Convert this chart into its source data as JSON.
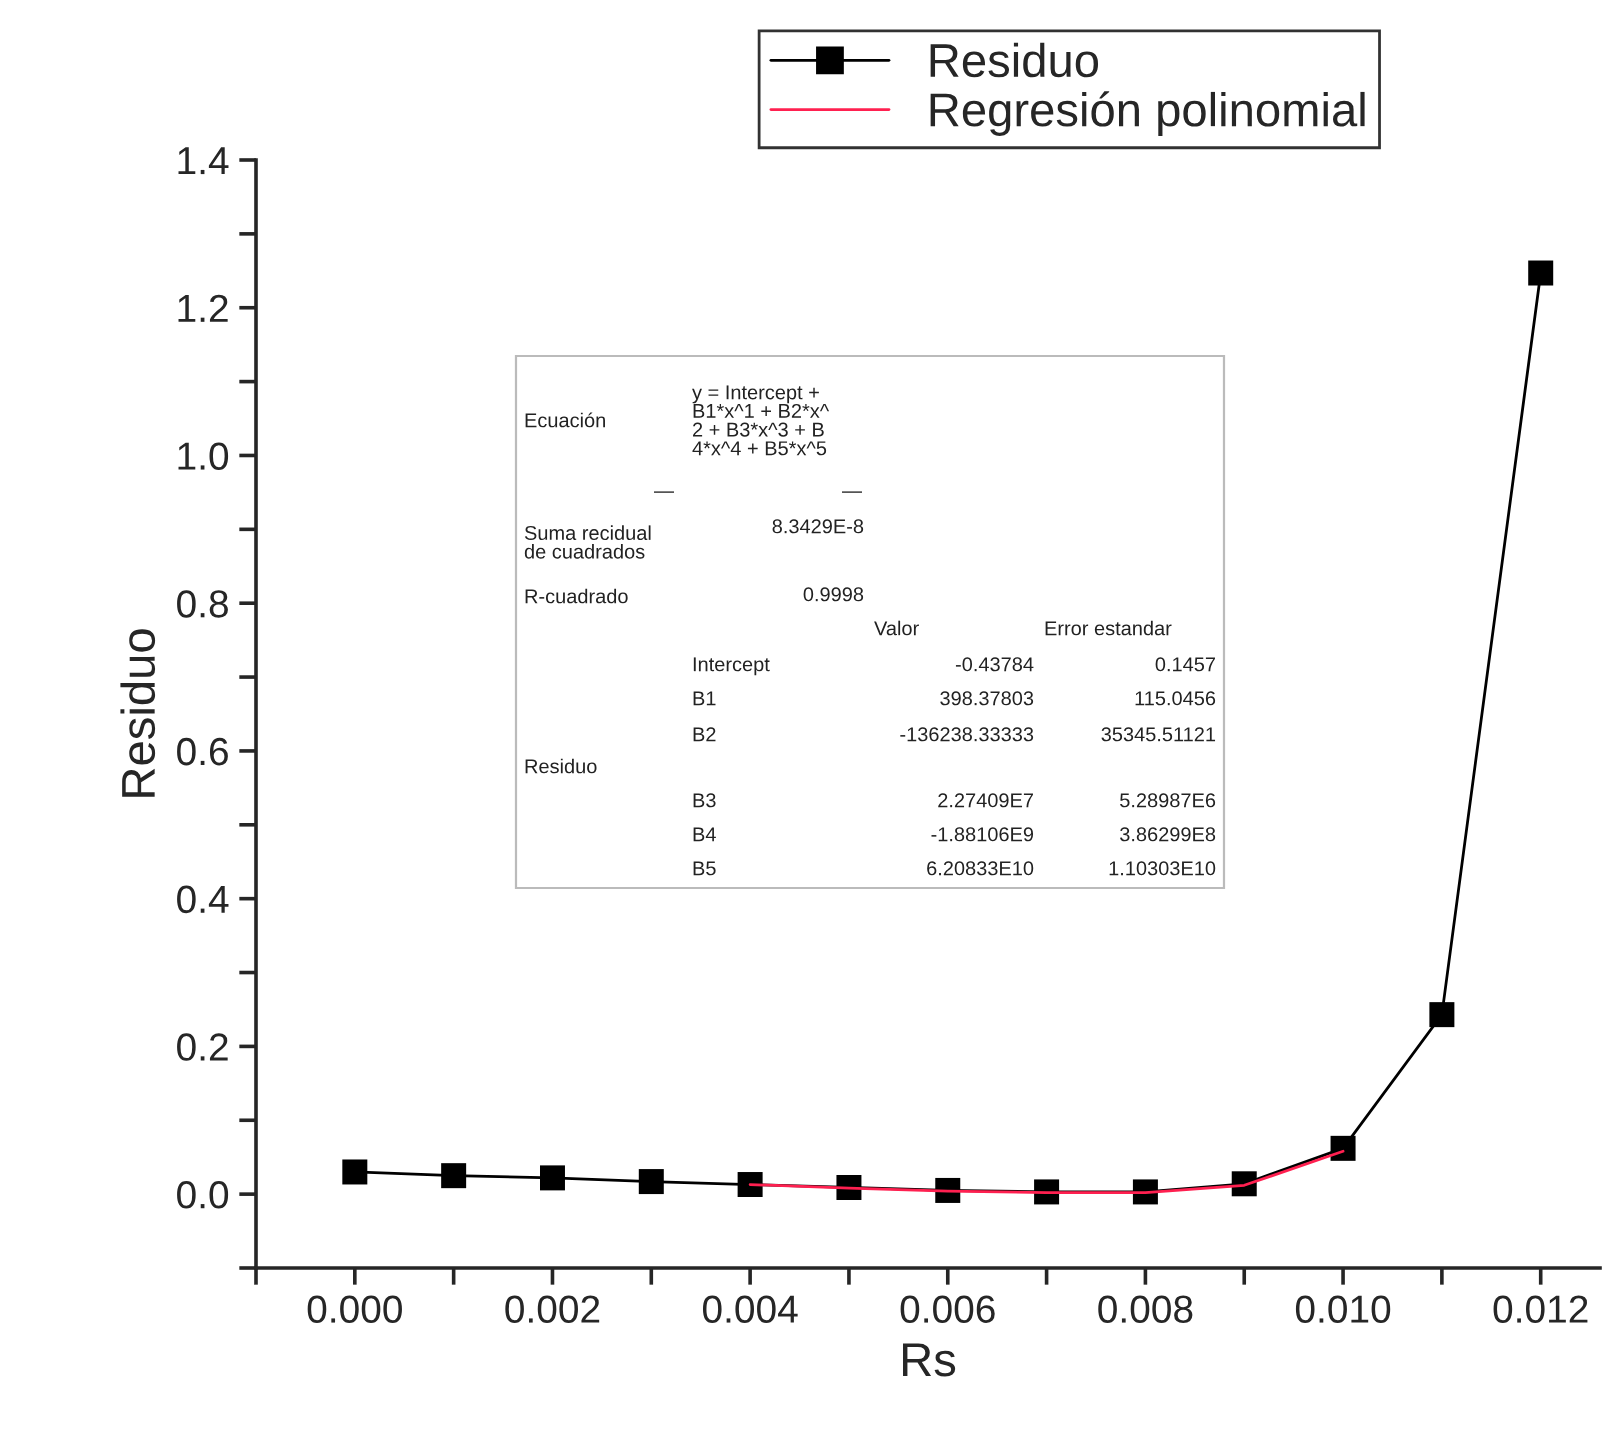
{
  "chart_data": {
    "type": "line",
    "xlabel": "Rs",
    "ylabel": "Residuo",
    "series": [
      {
        "name": "Residuo",
        "color": "#000000",
        "marker": "square",
        "x": [
          0.0,
          0.001,
          0.002,
          0.003,
          0.004,
          0.005,
          0.006,
          0.007,
          0.008,
          0.009,
          0.01,
          0.011,
          0.012
        ],
        "values": [
          0.03,
          0.025,
          0.022,
          0.017,
          0.013,
          0.009,
          0.005,
          0.003,
          0.003,
          0.014,
          0.062,
          0.243,
          1.247
        ]
      },
      {
        "name": "Regresión polinomial",
        "color": "#ff2050",
        "marker": "none",
        "x": [
          0.004,
          0.005,
          0.006,
          0.007,
          0.008,
          0.009,
          0.01
        ],
        "values": [
          0.013,
          0.008,
          0.004,
          0.002,
          0.002,
          0.012,
          0.058
        ]
      }
    ],
    "xlim": [
      -0.001,
      0.0126
    ],
    "ylim": [
      -0.1,
      1.4
    ],
    "xticks": [
      {
        "value": -0.001,
        "label": null
      },
      "0.000",
      {
        "value": 0.001,
        "label": null
      },
      {
        "value": 0.002,
        "label": "0.002"
      },
      {
        "value": 0.003,
        "label": null
      },
      {
        "value": 0.004,
        "label": "0.004"
      },
      {
        "value": 0.005,
        "label": null
      },
      {
        "value": 0.006,
        "label": "0.006"
      },
      {
        "value": 0.007,
        "label": null
      },
      {
        "value": 0.008,
        "label": "0.008"
      },
      {
        "value": 0.009,
        "label": null
      },
      {
        "value": 0.01,
        "label": "0.010"
      },
      {
        "value": 0.011,
        "label": null
      },
      {
        "value": 0.012,
        "label": "0.012"
      }
    ],
    "yticks": [
      {
        "value": -0.1,
        "label": null
      },
      {
        "value": 0.0,
        "label": "0.0"
      },
      {
        "value": 0.1,
        "label": null
      },
      {
        "value": 0.2,
        "label": "0.2"
      },
      {
        "value": 0.3,
        "label": null
      },
      {
        "value": 0.4,
        "label": "0.4"
      },
      {
        "value": 0.5,
        "label": null
      },
      {
        "value": 0.6,
        "label": "0.6"
      },
      {
        "value": 0.7,
        "label": null
      },
      {
        "value": 0.8,
        "label": "0.8"
      },
      {
        "value": 0.9,
        "label": null
      },
      {
        "value": 1.0,
        "label": "1.0"
      },
      {
        "value": 1.1,
        "label": null
      },
      {
        "value": 1.2,
        "label": "1.2"
      },
      {
        "value": 1.3,
        "label": null
      },
      {
        "value": 1.4,
        "label": "1.4"
      }
    ],
    "grid": false,
    "legend": "top",
    "line_style": "solid",
    "annotations": [
      "Ecuación",
      "y = Intercept +\nB1*x^1 + B2*x^\n2 + B3*x^3 + B\n4*x^4 + B5*x^5",
      "—",
      "—",
      "Suma recidual\nde cuadrados",
      "8.3429E-8",
      "R-cuadrado",
      "0.9998",
      "Valor",
      "Error estandar",
      "Intercept",
      "-0.43784",
      "0.1457",
      "B1",
      "398.37803",
      "115.0456",
      "B2",
      "-136238.33333",
      "35345.51121",
      "Residuo",
      "B3",
      "2.27409E7",
      "5.28987E6",
      "B4",
      "-1.88106E9",
      "3.86299E8",
      "B5",
      "6.20833E10",
      "1.10303E10"
    ]
  }
}
